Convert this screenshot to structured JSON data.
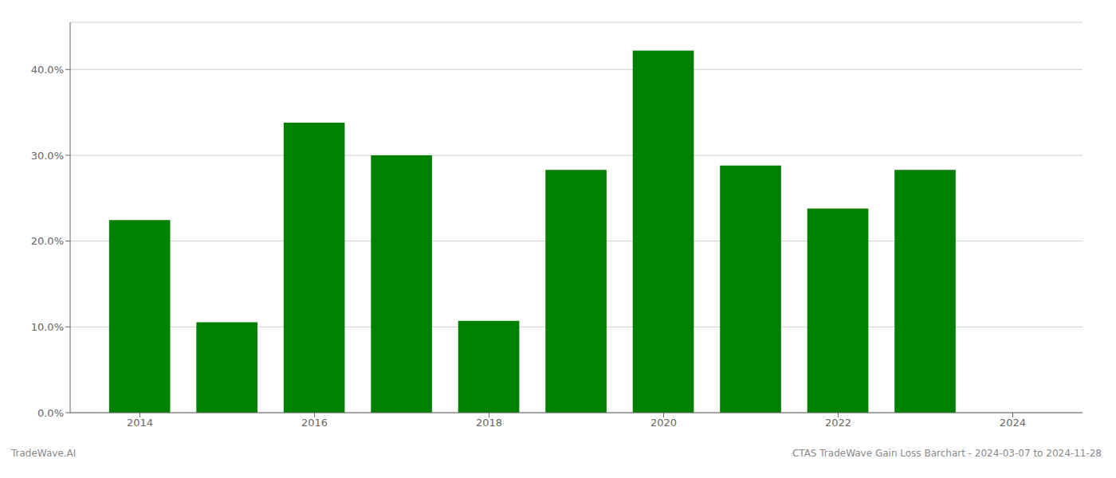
{
  "chart_data": {
    "type": "bar",
    "x": [
      2014,
      2015,
      2016,
      2017,
      2018,
      2019,
      2020,
      2021,
      2022,
      2023
    ],
    "values": [
      0.2245,
      0.1055,
      0.338,
      0.3,
      0.107,
      0.283,
      0.422,
      0.288,
      0.238,
      0.283
    ],
    "color": "#008000",
    "xlim": [
      2013.2,
      2024.8
    ],
    "xticks": [
      2014,
      2016,
      2018,
      2020,
      2022,
      2024
    ],
    "ylim": [
      0,
      0.455
    ],
    "yticks": [
      {
        "value": 0.0,
        "label": "0.0%"
      },
      {
        "value": 0.1,
        "label": "10.0%"
      },
      {
        "value": 0.2,
        "label": "20.0%"
      },
      {
        "value": 0.3,
        "label": "30.0%"
      },
      {
        "value": 0.4,
        "label": "40.0%"
      }
    ],
    "grid": true,
    "annotations": [
      "TradeWave.AI",
      "CTAS TradeWave Gain Loss Barchart - 2024-03-07 to 2024-11-28"
    ]
  }
}
